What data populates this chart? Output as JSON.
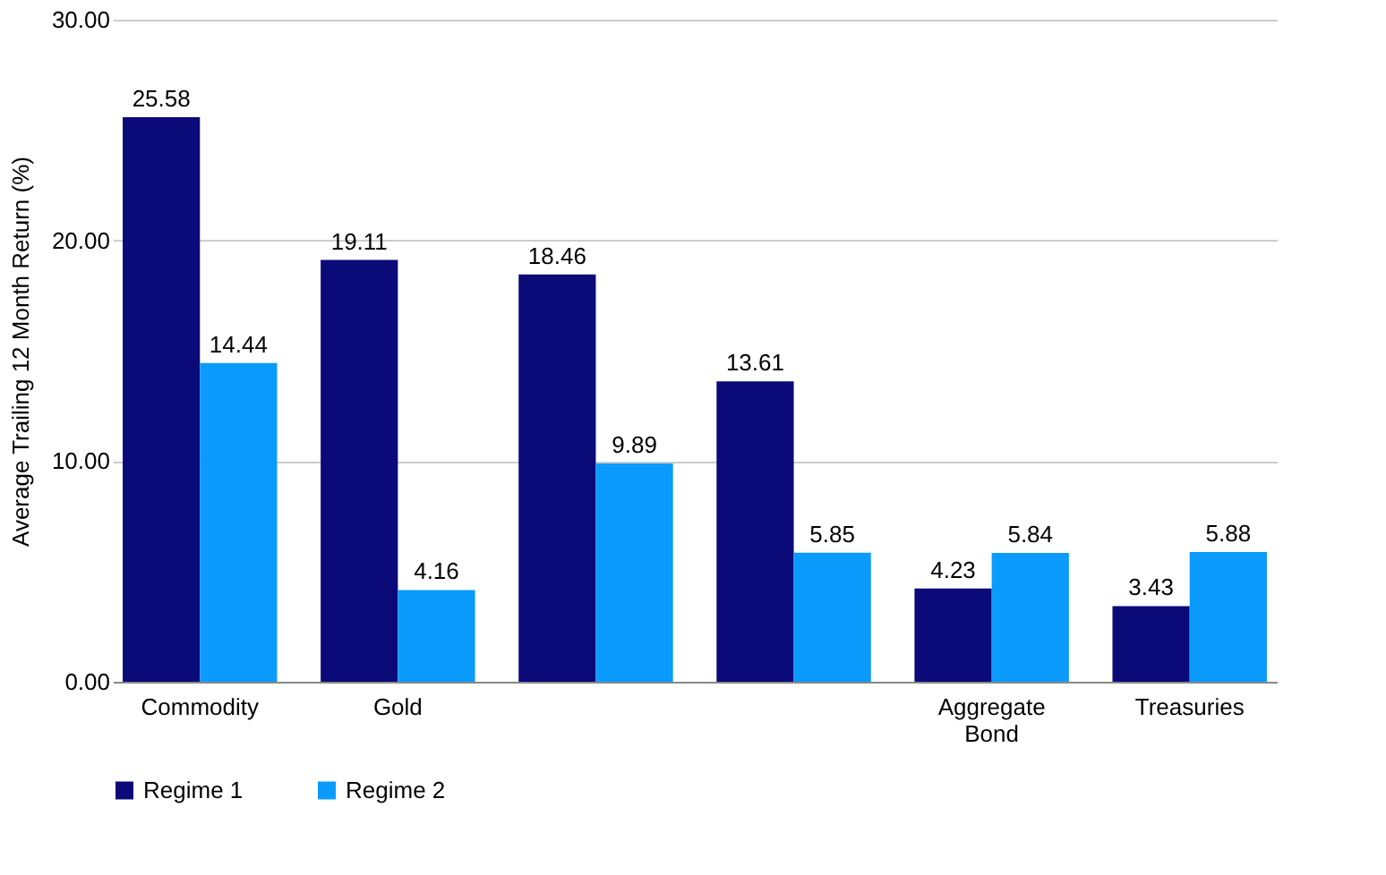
{
  "chart_data": {
    "type": "bar",
    "ylabel": "Average Trailing 12 Month Return (%)",
    "categories": [
      "Commodity",
      "Gold",
      null,
      null,
      "Aggregate Bond",
      "Treasuries"
    ],
    "series": [
      {
        "name": "Regime 1",
        "color": "#0a0a78",
        "values": [
          25.58,
          19.11,
          18.46,
          13.61,
          4.23,
          3.43
        ]
      },
      {
        "name": "Regime 2",
        "color": "#0b9bfc",
        "values": [
          14.44,
          4.16,
          9.89,
          5.85,
          5.84,
          5.88
        ]
      }
    ],
    "ylim": [
      0,
      30
    ],
    "yticks": [
      {
        "value": 0,
        "label": "0.00"
      },
      {
        "value": 10,
        "label": "10.00"
      },
      {
        "value": 20,
        "label": "20.00"
      },
      {
        "value": 30,
        "label": "30.00"
      }
    ],
    "grid": "y",
    "legend": "bottom",
    "data_labels": true
  }
}
